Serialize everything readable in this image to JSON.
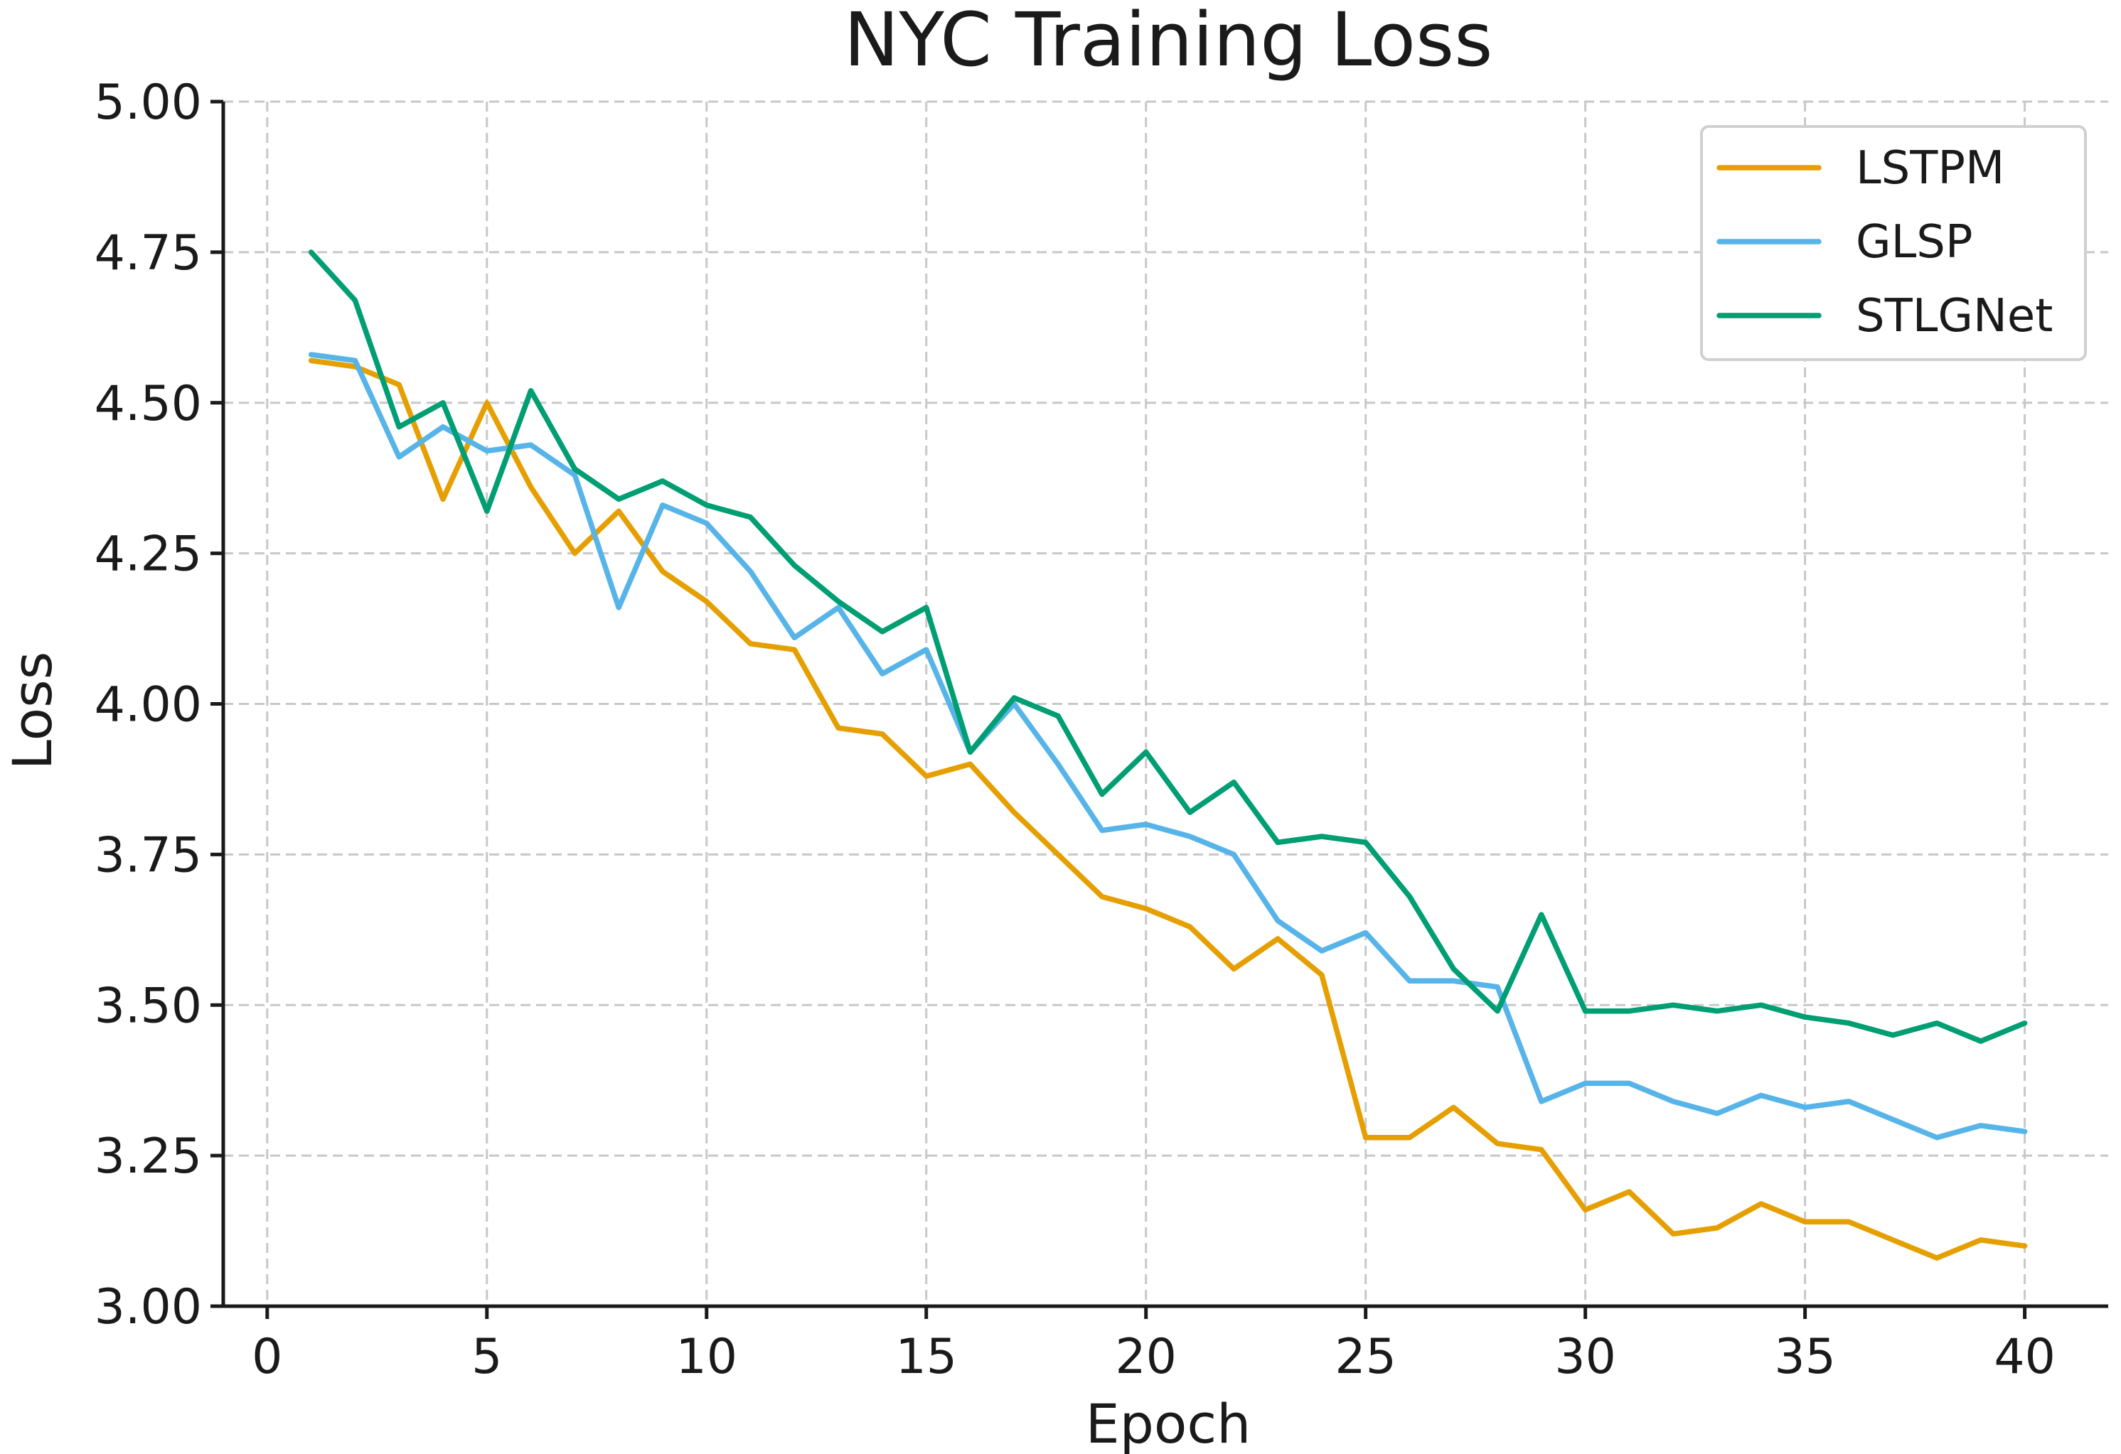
{
  "chart_data": {
    "type": "line",
    "title": "NYC Training Loss",
    "xlabel": "Epoch",
    "ylabel": "Loss",
    "xlim": [
      -1,
      41.9
    ],
    "ylim": [
      3.0,
      5.0
    ],
    "xticks": [
      0,
      5,
      10,
      15,
      20,
      25,
      30,
      35,
      40
    ],
    "xtick_labels": [
      "0",
      "5",
      "10",
      "15",
      "20",
      "25",
      "30",
      "35",
      "40"
    ],
    "yticks": [
      3.0,
      3.25,
      3.5,
      3.75,
      4.0,
      4.25,
      4.5,
      4.75,
      5.0
    ],
    "ytick_labels": [
      "3.00",
      "3.25",
      "3.50",
      "3.75",
      "4.00",
      "4.25",
      "4.50",
      "4.75",
      "5.00"
    ],
    "grid": true,
    "legend_position": "top-right",
    "x": [
      1,
      2,
      3,
      4,
      5,
      6,
      7,
      8,
      9,
      10,
      11,
      12,
      13,
      14,
      15,
      16,
      17,
      18,
      19,
      20,
      21,
      22,
      23,
      24,
      25,
      26,
      27,
      28,
      29,
      30,
      31,
      32,
      33,
      34,
      35,
      36,
      37,
      38,
      39,
      40
    ],
    "series": [
      {
        "name": "LSTPM",
        "color": "#E69F00",
        "values": [
          4.57,
          4.56,
          4.53,
          4.34,
          4.5,
          4.36,
          4.25,
          4.32,
          4.22,
          4.17,
          4.1,
          4.09,
          3.96,
          3.95,
          3.88,
          3.9,
          3.82,
          3.75,
          3.68,
          3.66,
          3.63,
          3.56,
          3.61,
          3.55,
          3.28,
          3.28,
          3.33,
          3.27,
          3.26,
          3.16,
          3.19,
          3.12,
          3.13,
          3.17,
          3.14,
          3.14,
          3.11,
          3.08,
          3.11,
          3.1
        ]
      },
      {
        "name": "GLSP",
        "color": "#56B4E9",
        "values": [
          4.58,
          4.57,
          4.41,
          4.46,
          4.42,
          4.43,
          4.38,
          4.16,
          4.33,
          4.3,
          4.22,
          4.11,
          4.16,
          4.05,
          4.09,
          3.92,
          4.0,
          3.9,
          3.79,
          3.8,
          3.78,
          3.75,
          3.64,
          3.59,
          3.62,
          3.54,
          3.54,
          3.53,
          3.34,
          3.37,
          3.37,
          3.34,
          3.32,
          3.35,
          3.33,
          3.34,
          3.31,
          3.28,
          3.3,
          3.29
        ]
      },
      {
        "name": "STLGNet",
        "color": "#009E73",
        "values": [
          4.75,
          4.67,
          4.46,
          4.5,
          4.32,
          4.52,
          4.39,
          4.34,
          4.37,
          4.33,
          4.31,
          4.23,
          4.17,
          4.12,
          4.16,
          3.92,
          4.01,
          3.98,
          3.85,
          3.92,
          3.82,
          3.87,
          3.77,
          3.78,
          3.77,
          3.68,
          3.56,
          3.49,
          3.65,
          3.49,
          3.49,
          3.5,
          3.49,
          3.5,
          3.48,
          3.47,
          3.45,
          3.47,
          3.44,
          3.47
        ]
      }
    ]
  }
}
